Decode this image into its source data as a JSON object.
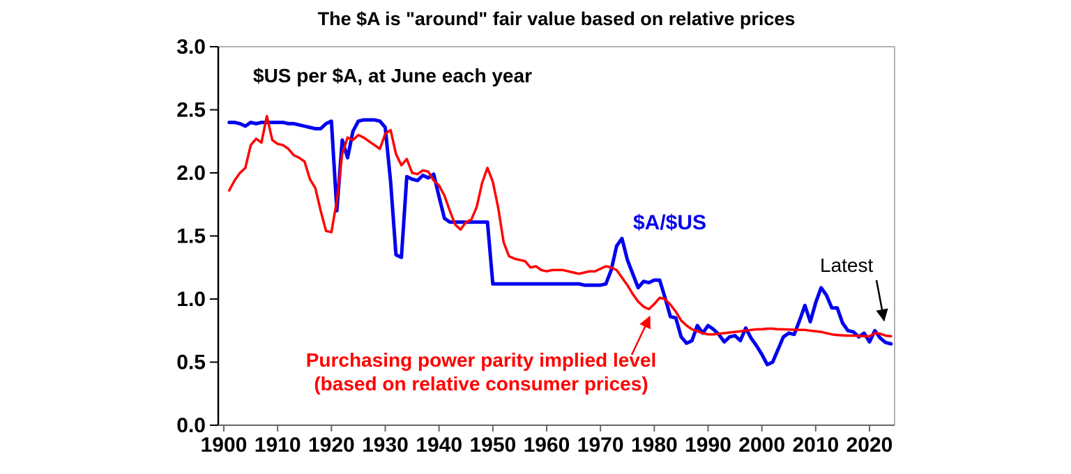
{
  "title": "The $A is \"around\" fair value based on relative prices",
  "subtitle": "$US per $A, at June each year",
  "annotations": {
    "series_blue_label": "$A/$US",
    "ppp_label_line1": "Purchasing power parity implied level",
    "ppp_label_line2": "(based on relative consumer prices)",
    "latest_label": "Latest"
  },
  "colors": {
    "exchange_rate_line": "#0000ee",
    "ppp_line": "#ff0000",
    "y_axis": "#000000",
    "x_axis": "#666666",
    "frame": "#9a9a9a",
    "tick_text": "#000000",
    "latest_arrow": "#000000",
    "ppp_arrow": "#ff0000"
  },
  "chart_data": {
    "type": "line",
    "title": "The $A is \"around\" fair value based on relative prices",
    "xlabel": "",
    "ylabel": "$US per $A, at June each year",
    "xlim": [
      1899,
      2025
    ],
    "ylim": [
      0,
      3.0
    ],
    "grid": false,
    "legend_position": "inline-annotations",
    "yticks": [
      "0.0",
      "0.5",
      "1.0",
      "1.5",
      "2.0",
      "2.5",
      "3.0"
    ],
    "xticks": [
      "1900",
      "1910",
      "1920",
      "1930",
      "1940",
      "1950",
      "1960",
      "1970",
      "1980",
      "1990",
      "2000",
      "2010",
      "2020"
    ],
    "x": [
      1901,
      1902,
      1903,
      1904,
      1905,
      1906,
      1907,
      1908,
      1909,
      1910,
      1911,
      1912,
      1913,
      1914,
      1915,
      1916,
      1917,
      1918,
      1919,
      1920,
      1921,
      1922,
      1923,
      1924,
      1925,
      1926,
      1927,
      1928,
      1929,
      1930,
      1931,
      1932,
      1933,
      1934,
      1935,
      1936,
      1937,
      1938,
      1939,
      1940,
      1941,
      1942,
      1943,
      1944,
      1945,
      1946,
      1947,
      1948,
      1949,
      1950,
      1951,
      1952,
      1953,
      1954,
      1955,
      1956,
      1957,
      1958,
      1959,
      1960,
      1961,
      1962,
      1963,
      1964,
      1965,
      1966,
      1967,
      1968,
      1969,
      1970,
      1971,
      1972,
      1973,
      1974,
      1975,
      1976,
      1977,
      1978,
      1979,
      1980,
      1981,
      1982,
      1983,
      1984,
      1985,
      1986,
      1987,
      1988,
      1989,
      1990,
      1991,
      1992,
      1993,
      1994,
      1995,
      1996,
      1997,
      1998,
      1999,
      2000,
      2001,
      2002,
      2003,
      2004,
      2005,
      2006,
      2007,
      2008,
      2009,
      2010,
      2011,
      2012,
      2013,
      2014,
      2015,
      2016,
      2017,
      2018,
      2019,
      2020,
      2021,
      2022,
      2023,
      2024
    ],
    "series": [
      {
        "name": "$A/$US exchange rate ($US per $A)",
        "color": "#0000ee",
        "stroke_width": 5,
        "values": [
          2.4,
          2.4,
          2.39,
          2.37,
          2.4,
          2.39,
          2.4,
          2.4,
          2.4,
          2.4,
          2.4,
          2.39,
          2.39,
          2.38,
          2.37,
          2.36,
          2.35,
          2.35,
          2.39,
          2.41,
          1.7,
          2.26,
          2.12,
          2.33,
          2.41,
          2.42,
          2.42,
          2.42,
          2.41,
          2.36,
          1.93,
          1.35,
          1.33,
          1.97,
          1.95,
          1.94,
          1.98,
          1.96,
          1.99,
          1.81,
          1.64,
          1.61,
          1.61,
          1.61,
          1.61,
          1.61,
          1.61,
          1.61,
          1.61,
          1.12,
          1.12,
          1.12,
          1.12,
          1.12,
          1.12,
          1.12,
          1.12,
          1.12,
          1.12,
          1.12,
          1.12,
          1.12,
          1.12,
          1.12,
          1.12,
          1.12,
          1.11,
          1.11,
          1.11,
          1.11,
          1.12,
          1.23,
          1.42,
          1.48,
          1.31,
          1.2,
          1.09,
          1.14,
          1.13,
          1.15,
          1.15,
          1.01,
          0.86,
          0.85,
          0.7,
          0.65,
          0.67,
          0.79,
          0.73,
          0.79,
          0.76,
          0.72,
          0.66,
          0.7,
          0.71,
          0.67,
          0.77,
          0.69,
          0.63,
          0.56,
          0.48,
          0.5,
          0.6,
          0.7,
          0.73,
          0.72,
          0.83,
          0.95,
          0.82,
          0.97,
          1.09,
          1.03,
          0.93,
          0.93,
          0.81,
          0.75,
          0.74,
          0.7,
          0.73,
          0.66,
          0.75,
          0.69,
          0.655,
          0.645
        ]
      },
      {
        "name": "Purchasing power parity implied level (based on relative consumer prices)",
        "color": "#ff0000",
        "stroke_width": 3.5,
        "values": [
          1.86,
          1.94,
          2.0,
          2.04,
          2.22,
          2.27,
          2.24,
          2.45,
          2.26,
          2.23,
          2.22,
          2.19,
          2.14,
          2.12,
          2.09,
          1.95,
          1.88,
          1.7,
          1.54,
          1.53,
          1.78,
          2.15,
          2.28,
          2.26,
          2.3,
          2.28,
          2.25,
          2.22,
          2.19,
          2.31,
          2.34,
          2.15,
          2.06,
          2.11,
          2.0,
          1.99,
          2.02,
          2.01,
          1.94,
          1.9,
          1.82,
          1.7,
          1.59,
          1.55,
          1.61,
          1.63,
          1.73,
          1.92,
          2.04,
          1.93,
          1.72,
          1.45,
          1.34,
          1.32,
          1.31,
          1.3,
          1.25,
          1.26,
          1.23,
          1.22,
          1.23,
          1.23,
          1.23,
          1.22,
          1.21,
          1.2,
          1.21,
          1.22,
          1.22,
          1.24,
          1.26,
          1.25,
          1.23,
          1.17,
          1.11,
          1.04,
          0.98,
          0.94,
          0.92,
          0.96,
          1.01,
          1.0,
          0.955,
          0.9,
          0.83,
          0.79,
          0.76,
          0.745,
          0.73,
          0.72,
          0.72,
          0.725,
          0.73,
          0.735,
          0.74,
          0.745,
          0.75,
          0.755,
          0.76,
          0.76,
          0.765,
          0.765,
          0.76,
          0.76,
          0.758,
          0.757,
          0.755,
          0.755,
          0.75,
          0.745,
          0.74,
          0.73,
          0.72,
          0.715,
          0.712,
          0.71,
          0.71,
          0.708,
          0.705,
          0.705,
          0.73,
          0.725,
          0.71,
          0.705
        ]
      }
    ]
  }
}
